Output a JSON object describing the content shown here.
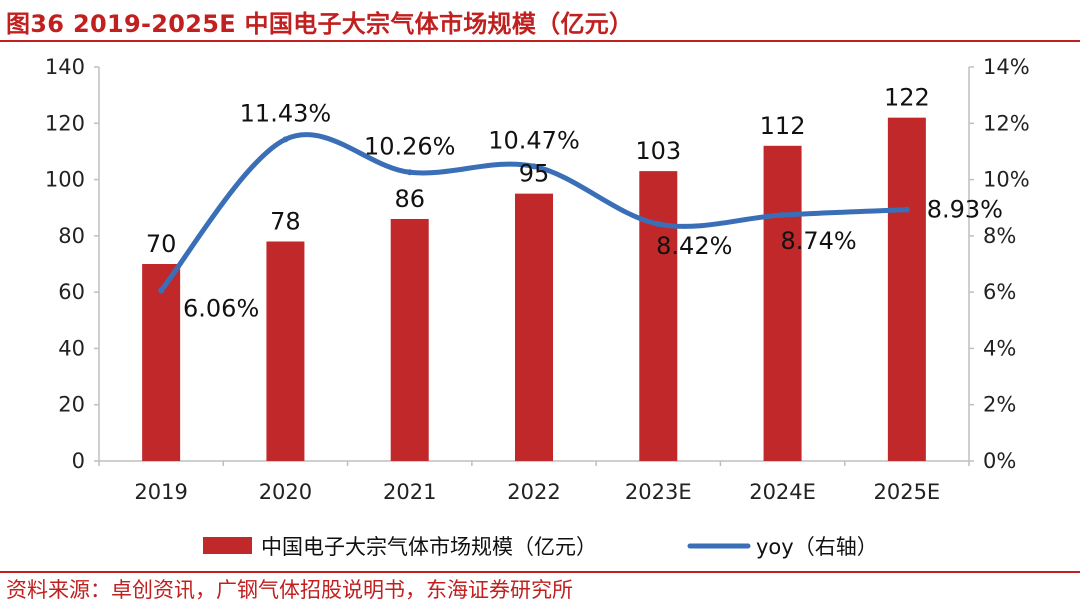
{
  "figure": {
    "title": "图36  2019-2025E 中国电子大宗气体市场规模（亿元）",
    "source": "资料来源：卓创资讯，广钢气体招股说明书，东海证券研究所"
  },
  "colors": {
    "accent": "#c0201f",
    "bar": "#c0282a",
    "line": "#3a6fb8",
    "axis": "#bfbfbf"
  },
  "chart_data": {
    "type": "bar",
    "categories": [
      "2019",
      "2020",
      "2021",
      "2022",
      "2023E",
      "2024E",
      "2025E"
    ],
    "series": [
      {
        "name": "中国电子大宗气体市场规模（亿元）",
        "type": "bar",
        "axis": "left",
        "values": [
          70,
          78,
          86,
          95,
          103,
          112,
          122
        ],
        "labels": [
          "70",
          "78",
          "86",
          "95",
          "103",
          "112",
          "122"
        ]
      },
      {
        "name": "yoy（右轴）",
        "type": "line",
        "axis": "right",
        "values": [
          6.06,
          11.43,
          10.26,
          10.47,
          8.42,
          8.74,
          8.93
        ],
        "labels": [
          "6.06%",
          "11.43%",
          "10.26%",
          "10.47%",
          "8.42%",
          "8.74%",
          "8.93%"
        ]
      }
    ],
    "y_left": {
      "min": 0,
      "max": 140,
      "ticks": [
        "0",
        "20",
        "40",
        "60",
        "80",
        "100",
        "120",
        "140"
      ]
    },
    "y_right": {
      "min": 0,
      "max": 14,
      "ticks": [
        "0%",
        "2%",
        "4%",
        "6%",
        "8%",
        "10%",
        "12%",
        "14%"
      ]
    },
    "legend_position": "bottom",
    "grid": false
  }
}
